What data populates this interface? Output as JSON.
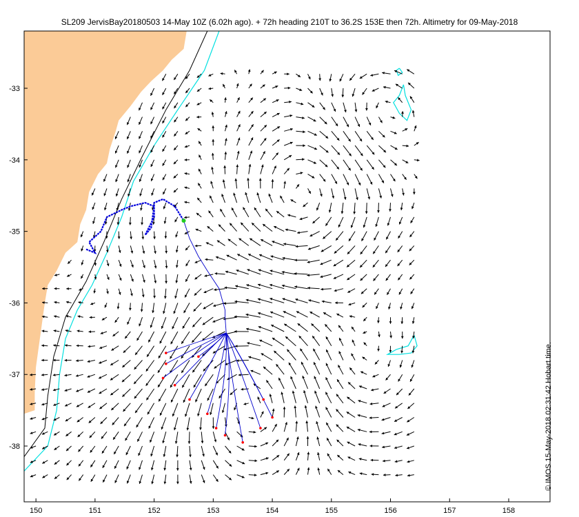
{
  "title": "SL209 JervisBay20180503 14-May 10Z (6.02h ago). + 72h heading 210T to 36.2S 153E then 72h. Altimetry for 09-May-2018",
  "credit": "© IMOS 15-May-2018 02:31:42 Hobart time.",
  "colors": {
    "land": "#fbcb97",
    "arrow": "#000000",
    "track": "#0000dd",
    "forecast": "#0000cc",
    "contour_200m": "#00e0e0",
    "contour_isobath": "#000000",
    "glider": "#22cc22",
    "endpoint": "#ff0000"
  },
  "map": {
    "lon_range": [
      149.8,
      158.7
    ],
    "lat_range": [
      -38.78,
      -32.2
    ],
    "x_ticks": [
      150,
      151,
      152,
      153,
      154,
      155,
      156,
      157,
      158
    ],
    "y_ticks": [
      -33,
      -34,
      -35,
      -36,
      -37,
      -38
    ],
    "y_tick_labels": [
      "-33",
      "-34",
      "-35",
      "-36",
      "-37",
      "-38"
    ],
    "x_tick_labels": [
      "150",
      "151",
      "152",
      "153",
      "154",
      "155",
      "156",
      "157",
      "158"
    ],
    "vector_grid": {
      "lon_start": 150.0,
      "lon_end": 156.4,
      "lat_start": -32.8,
      "lat_end": -38.4,
      "step_lon": 0.2,
      "step_lat": 0.2
    },
    "coast": [
      [
        149.8,
        -32.2
      ],
      [
        152.55,
        -32.2
      ],
      [
        152.5,
        -32.45
      ],
      [
        152.3,
        -32.6
      ],
      [
        152.15,
        -32.75
      ],
      [
        151.95,
        -32.9
      ],
      [
        151.78,
        -33.05
      ],
      [
        151.6,
        -33.25
      ],
      [
        151.4,
        -33.45
      ],
      [
        151.35,
        -33.6
      ],
      [
        151.25,
        -33.85
      ],
      [
        151.2,
        -34.05
      ],
      [
        151.05,
        -34.2
      ],
      [
        150.9,
        -34.45
      ],
      [
        150.85,
        -34.7
      ],
      [
        150.75,
        -34.9
      ],
      [
        150.7,
        -35.15
      ],
      [
        150.5,
        -35.3
      ],
      [
        150.35,
        -35.55
      ],
      [
        150.2,
        -35.75
      ],
      [
        150.15,
        -36.0
      ],
      [
        150.1,
        -36.3
      ],
      [
        150.05,
        -36.6
      ],
      [
        150.0,
        -36.9
      ],
      [
        149.98,
        -37.25
      ],
      [
        149.98,
        -37.5
      ],
      [
        149.8,
        -37.55
      ]
    ],
    "isobath_black": [
      [
        152.9,
        -32.2
      ],
      [
        152.6,
        -32.75
      ],
      [
        152.2,
        -33.3
      ],
      [
        151.8,
        -33.95
      ],
      [
        151.45,
        -34.55
      ],
      [
        151.15,
        -35.15
      ],
      [
        150.85,
        -35.7
      ],
      [
        150.5,
        -36.2
      ],
      [
        150.3,
        -36.75
      ],
      [
        150.2,
        -37.3
      ],
      [
        150.15,
        -37.75
      ],
      [
        149.8,
        -38.15
      ]
    ],
    "isobath_cyan": [
      [
        153.1,
        -32.2
      ],
      [
        152.85,
        -32.75
      ],
      [
        152.4,
        -33.3
      ],
      [
        152.0,
        -33.8
      ],
      [
        151.65,
        -34.3
      ],
      [
        151.45,
        -34.8
      ],
      [
        151.2,
        -35.3
      ],
      [
        150.95,
        -35.75
      ],
      [
        150.7,
        -36.1
      ],
      [
        150.5,
        -36.5
      ],
      [
        150.4,
        -37.0
      ],
      [
        150.35,
        -37.5
      ],
      [
        150.2,
        -38.0
      ],
      [
        149.8,
        -38.35
      ]
    ],
    "eddy_ne": [
      [
        156.22,
        -32.95
      ],
      [
        156.25,
        -33.1
      ],
      [
        156.35,
        -33.3
      ],
      [
        156.28,
        -33.45
      ],
      [
        156.15,
        -33.35
      ],
      [
        156.05,
        -33.2
      ],
      [
        156.15,
        -33.1
      ],
      [
        156.22,
        -32.95
      ]
    ],
    "eddy_ne_small": [
      [
        156.15,
        -32.72
      ],
      [
        156.2,
        -32.78
      ],
      [
        156.13,
        -32.82
      ],
      [
        156.1,
        -32.75
      ],
      [
        156.15,
        -32.72
      ]
    ],
    "eddy_se": [
      [
        156.4,
        -36.45
      ],
      [
        156.45,
        -36.6
      ],
      [
        156.35,
        -36.7
      ],
      [
        156.15,
        -36.72
      ],
      [
        155.95,
        -36.72
      ],
      [
        156.1,
        -36.65
      ],
      [
        156.3,
        -36.6
      ],
      [
        156.4,
        -36.45
      ]
    ],
    "track": [
      [
        150.85,
        -35.25
      ],
      [
        151.0,
        -35.3
      ],
      [
        150.9,
        -35.15
      ],
      [
        151.1,
        -35.0
      ],
      [
        151.2,
        -34.8
      ],
      [
        151.45,
        -34.7
      ],
      [
        151.6,
        -34.65
      ],
      [
        151.85,
        -34.6
      ],
      [
        152.0,
        -34.65
      ],
      [
        151.95,
        -34.95
      ],
      [
        151.85,
        -35.05
      ],
      [
        152.0,
        -34.8
      ],
      [
        152.0,
        -34.6
      ],
      [
        152.15,
        -34.55
      ],
      [
        152.35,
        -34.65
      ],
      [
        152.5,
        -34.85
      ]
    ],
    "glider_start": [
      152.5,
      -34.85
    ],
    "heading_path": [
      [
        152.5,
        -34.85
      ],
      [
        152.6,
        -35.1
      ],
      [
        152.75,
        -35.35
      ],
      [
        152.9,
        -35.55
      ],
      [
        153.1,
        -35.8
      ],
      [
        153.2,
        -36.1
      ],
      [
        153.2,
        -36.2
      ],
      [
        153.22,
        -36.42
      ]
    ],
    "forecast_origin": [
      153.22,
      -36.42
    ],
    "forecast_ends": [
      [
        152.2,
        -36.7
      ],
      [
        152.2,
        -36.85
      ],
      [
        152.15,
        -37.05
      ],
      [
        152.35,
        -37.15
      ],
      [
        152.6,
        -37.35
      ],
      [
        152.9,
        -37.55
      ],
      [
        153.05,
        -37.75
      ],
      [
        153.2,
        -37.85
      ],
      [
        153.5,
        -37.95
      ],
      [
        153.8,
        -37.75
      ],
      [
        154.0,
        -37.6
      ],
      [
        153.85,
        -37.35
      ],
      [
        152.75,
        -36.75
      ]
    ]
  }
}
